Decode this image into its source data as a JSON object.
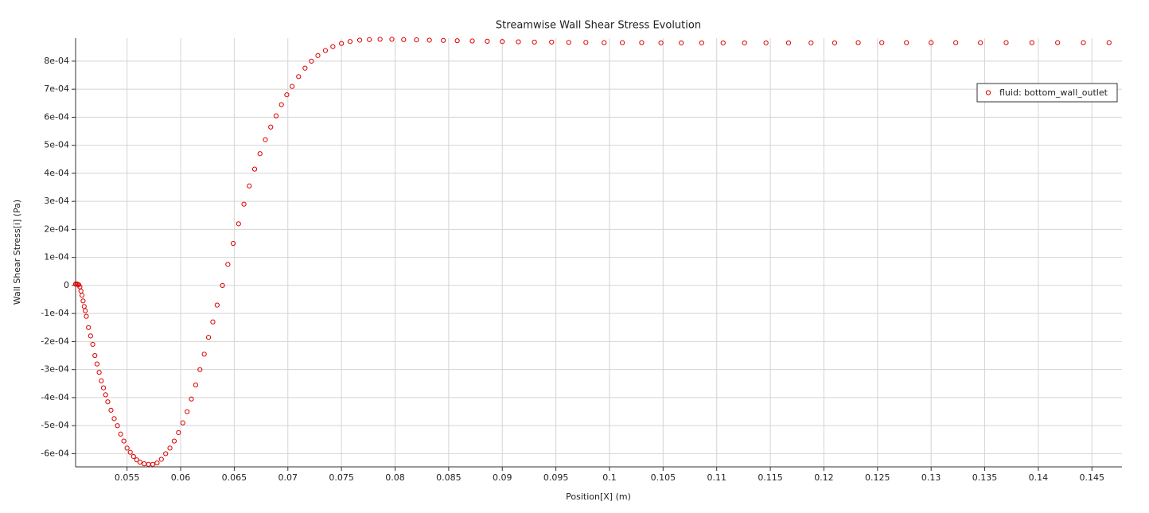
{
  "chart_data": {
    "type": "scatter",
    "title": "Streamwise Wall Shear Stress Evolution",
    "x_label": "Position[X] (m)",
    "y_label": "Wall Shear Stress[i] (Pa)",
    "xlim": [
      0.0502,
      0.1478
    ],
    "ylim": [
      -0.000647,
      0.000882
    ],
    "xticks": [
      0.055,
      0.06,
      0.065,
      0.07,
      0.075,
      0.08,
      0.085,
      0.09,
      0.095,
      0.1,
      0.105,
      0.11,
      0.115,
      0.12,
      0.125,
      0.13,
      0.135,
      0.14,
      0.145
    ],
    "yticks": [
      {
        "value": -0.0006,
        "label": "-6e-04"
      },
      {
        "value": -0.0005,
        "label": "-5e-04"
      },
      {
        "value": -0.0004,
        "label": "-4e-04"
      },
      {
        "value": -0.0003,
        "label": "-3e-04"
      },
      {
        "value": -0.0002,
        "label": "-2e-04"
      },
      {
        "value": -0.0001,
        "label": "-1e-04"
      },
      0,
      {
        "value": 0.0001,
        "label": "1e-04"
      },
      {
        "value": 0.0002,
        "label": "2e-04"
      },
      {
        "value": 0.0003,
        "label": "3e-04"
      },
      {
        "value": 0.0004,
        "label": "4e-04"
      },
      {
        "value": 0.0005,
        "label": "5e-04"
      },
      {
        "value": 0.0006,
        "label": "6e-04"
      },
      {
        "value": 0.0007,
        "label": "7e-04"
      },
      {
        "value": 0.0008,
        "label": "8e-04"
      }
    ],
    "grid": true,
    "legend": "upper-right",
    "series": [
      {
        "name": "fluid: bottom_wall_outlet",
        "color": "#dd0000",
        "x": [
          0.0502,
          0.0503,
          0.0504,
          0.0505,
          0.0506,
          0.0507,
          0.0508,
          0.0509,
          0.051,
          0.0511,
          0.0512,
          0.0514,
          0.0516,
          0.0518,
          0.052,
          0.0522,
          0.0524,
          0.0526,
          0.0528,
          0.053,
          0.0532,
          0.0535,
          0.0538,
          0.0541,
          0.0544,
          0.0547,
          0.055,
          0.0553,
          0.0556,
          0.0559,
          0.0562,
          0.0566,
          0.057,
          0.0574,
          0.0578,
          0.0582,
          0.0586,
          0.059,
          0.0594,
          0.0598,
          0.0602,
          0.0606,
          0.061,
          0.0614,
          0.0618,
          0.0622,
          0.0626,
          0.063,
          0.0634,
          0.0639,
          0.0644,
          0.0649,
          0.0654,
          0.0659,
          0.0664,
          0.0669,
          0.0674,
          0.0679,
          0.0684,
          0.0689,
          0.0694,
          0.0699,
          0.0704,
          0.071,
          0.0716,
          0.0722,
          0.0728,
          0.0735,
          0.0742,
          0.075,
          0.0758,
          0.0767,
          0.0776,
          0.0786,
          0.0797,
          0.0808,
          0.082,
          0.0832,
          0.0845,
          0.0858,
          0.0872,
          0.0886,
          0.09,
          0.0915,
          0.093,
          0.0946,
          0.0962,
          0.0978,
          0.0995,
          0.1012,
          0.103,
          0.1048,
          0.1067,
          0.1086,
          0.1106,
          0.1126,
          0.1146,
          0.1167,
          0.1188,
          0.121,
          0.1232,
          0.1254,
          0.1277,
          0.13,
          0.1323,
          0.1346,
          0.137,
          0.1394,
          0.1418,
          0.1442,
          0.1466
        ],
        "values": [
          5e-06,
          5e-06,
          4e-06,
          2e-06,
          -5e-06,
          -2e-05,
          -3.5e-05,
          -5.5e-05,
          -7.5e-05,
          -9e-05,
          -0.00011,
          -0.00015,
          -0.00018,
          -0.00021,
          -0.00025,
          -0.00028,
          -0.00031,
          -0.00034,
          -0.000365,
          -0.00039,
          -0.000415,
          -0.000445,
          -0.000475,
          -0.0005,
          -0.00053,
          -0.000555,
          -0.00058,
          -0.000595,
          -0.00061,
          -0.000622,
          -0.00063,
          -0.000636,
          -0.000638,
          -0.000638,
          -0.000633,
          -0.00062,
          -0.0006,
          -0.00058,
          -0.000555,
          -0.000525,
          -0.00049,
          -0.00045,
          -0.000405,
          -0.000355,
          -0.0003,
          -0.000245,
          -0.000185,
          -0.00013,
          -7e-05,
          0,
          7.5e-05,
          0.00015,
          0.00022,
          0.00029,
          0.000355,
          0.000415,
          0.00047,
          0.00052,
          0.000565,
          0.000605,
          0.000645,
          0.00068,
          0.00071,
          0.000745,
          0.000775,
          0.0008,
          0.00082,
          0.000838,
          0.000852,
          0.000863,
          0.00087,
          0.000875,
          0.000877,
          0.000878,
          0.000878,
          0.000877,
          0.000876,
          0.000875,
          0.000874,
          0.000873,
          0.000872,
          0.000871,
          0.00087,
          0.000869,
          0.000868,
          0.000868,
          0.000867,
          0.000867,
          0.000866,
          0.000866,
          0.000866,
          0.000865,
          0.000865,
          0.000865,
          0.000865,
          0.000865,
          0.000865,
          0.000865,
          0.000865,
          0.000865,
          0.000866,
          0.000866,
          0.000866,
          0.000866,
          0.000866,
          0.000866,
          0.000866,
          0.000866,
          0.000866,
          0.000866,
          0.000866
        ]
      }
    ]
  }
}
